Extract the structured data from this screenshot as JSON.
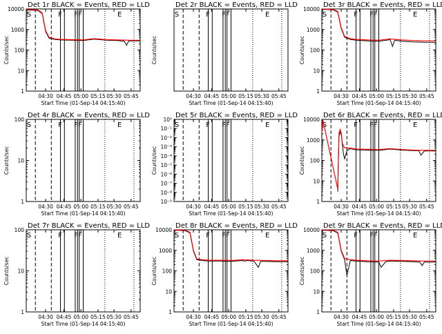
{
  "page": {
    "xlabel": "Start Time (01-Sep-14 04:15:40)",
    "ylabel": "Counts/sec"
  },
  "colors": {
    "events": "#000000",
    "lld": "#ff0000",
    "background": "#ffffff"
  },
  "chart_data": [
    {
      "type": "line",
      "title": "Det 1r BLACK = Events, RED = LLD",
      "scale": "log",
      "ylim": [
        1,
        10000
      ],
      "yticks": [
        "1",
        "10",
        "100",
        "1000",
        "10000"
      ],
      "xticks": [
        "04:30",
        "04:45",
        "05:00",
        "05:15",
        "05:30",
        "05:45"
      ],
      "xlabel": "Start Time (01-Sep-14 04:15:40)",
      "ylabel": "Counts/sec",
      "markers": [
        "S",
        "F",
        "FF",
        "E"
      ],
      "series": [
        {
          "name": "Events",
          "color": "#000000",
          "x": [
            0,
            5,
            10,
            14,
            17,
            20,
            25,
            30,
            40,
            50,
            60,
            70,
            80,
            86,
            88,
            90,
            100
          ],
          "y": [
            9000,
            8800,
            8500,
            6000,
            800,
            380,
            330,
            310,
            300,
            290,
            340,
            300,
            290,
            270,
            170,
            280,
            280
          ]
        },
        {
          "name": "LLD",
          "color": "#ff0000",
          "x": [
            0,
            5,
            10,
            14,
            17,
            20,
            25,
            30,
            40,
            50,
            60,
            70,
            80,
            90,
            100
          ],
          "y": [
            9500,
            9200,
            9000,
            6500,
            900,
            420,
            350,
            330,
            320,
            310,
            360,
            320,
            310,
            300,
            300
          ]
        }
      ]
    },
    {
      "type": "line",
      "title": "Det 2r BLACK = Events, RED = LLD",
      "scale": "log",
      "ylim": [
        1,
        10000
      ],
      "yticks": [],
      "xticks": [
        "04:30",
        "04:45",
        "05:00",
        "05:15",
        "05:30",
        "05:45"
      ],
      "xlabel": "Start Time (01-Sep-14 04:15:40)",
      "ylabel": "Counts/sec",
      "markers": [
        "S",
        "F",
        "FF",
        "E"
      ],
      "series": []
    },
    {
      "type": "line",
      "title": "Det 3r BLACK = Events, RED = LLD",
      "scale": "log",
      "ylim": [
        1,
        10000
      ],
      "yticks": [
        "1",
        "10",
        "100",
        "1000",
        "10000"
      ],
      "xticks": [
        "04:30",
        "04:45",
        "05:00",
        "05:15",
        "05:30",
        "05:45"
      ],
      "xlabel": "Start Time (01-Sep-14 04:15:40)",
      "ylabel": "Counts/sec",
      "markers": [
        "S",
        "F",
        "FF",
        "E"
      ],
      "series": [
        {
          "name": "Events",
          "color": "#000000",
          "x": [
            0,
            5,
            10,
            14,
            17,
            20,
            25,
            30,
            40,
            50,
            60,
            62,
            64,
            70,
            80,
            90,
            100
          ],
          "y": [
            9500,
            9400,
            9000,
            7000,
            1100,
            420,
            330,
            300,
            280,
            270,
            320,
            150,
            300,
            270,
            250,
            240,
            240
          ]
        },
        {
          "name": "LLD",
          "color": "#ff0000",
          "x": [
            0,
            5,
            10,
            14,
            17,
            20,
            25,
            30,
            40,
            50,
            60,
            70,
            80,
            90,
            100
          ],
          "y": [
            10000,
            9800,
            9500,
            7500,
            1200,
            460,
            360,
            330,
            310,
            300,
            350,
            310,
            290,
            280,
            280
          ]
        }
      ]
    },
    {
      "type": "line",
      "title": "Det 4r BLACK = Events, RED = LLD",
      "scale": "log",
      "ylim": [
        1,
        100
      ],
      "yticks": [
        "1",
        "10",
        "100"
      ],
      "xticks": [
        "04:30",
        "04:45",
        "05:00",
        "05:15",
        "05:30",
        "05:45"
      ],
      "xlabel": "Start Time (01-Sep-14 04:15:40)",
      "ylabel": "Counts/sec",
      "markers": [
        "S",
        "F",
        "FF",
        "E"
      ],
      "series": []
    },
    {
      "type": "line",
      "title": "Det 5r BLACK = Events, RED = LLD",
      "scale": "log",
      "ylim": [
        1e-09,
        1
      ],
      "yticks": [
        "10⁻⁹",
        "10⁻⁸",
        "10⁻⁷",
        "10⁻⁶",
        "10⁻⁵",
        "10⁻⁴",
        "10⁻³",
        "10⁻²",
        "10⁻¹",
        "10⁰"
      ],
      "xticks": [
        "04:30",
        "04:45",
        "05:00",
        "05:15",
        "05:30",
        "05:45"
      ],
      "xlabel": "Start Time (01-Sep-14 04:15:40)",
      "ylabel": "Counts/sec",
      "markers": [
        "S",
        "F",
        "FF",
        "E"
      ],
      "series": []
    },
    {
      "type": "line",
      "title": "Det 6r BLACK = Events, RED = LLD",
      "scale": "log",
      "ylim": [
        1,
        10000
      ],
      "yticks": [
        "1",
        "10",
        "100",
        "1000",
        "10000"
      ],
      "xticks": [
        "04:30",
        "04:45",
        "05:00",
        "05:15",
        "05:30",
        "05:45"
      ],
      "xlabel": "Start Time (01-Sep-14 04:15:40)",
      "ylabel": "Counts/sec",
      "markers": [
        "S",
        "F",
        "FF",
        "E"
      ],
      "series": [
        {
          "name": "Events",
          "color": "#000000",
          "x": [
            14,
            15,
            16,
            17,
            18,
            19,
            20,
            22,
            25,
            30,
            40,
            50,
            60,
            70,
            80,
            85,
            87,
            90,
            100
          ],
          "y": [
            3,
            1500,
            2500,
            1800,
            600,
            200,
            120,
            300,
            380,
            330,
            320,
            310,
            360,
            320,
            300,
            300,
            180,
            290,
            290
          ]
        },
        {
          "name": "LLD",
          "color": "#ff0000",
          "x": [
            0,
            1,
            14,
            15,
            16,
            17,
            18,
            19,
            20,
            22,
            25,
            30,
            40,
            50,
            60,
            70,
            80,
            90,
            100
          ],
          "y": [
            2500,
            9000,
            4,
            2000,
            3200,
            2200,
            700,
            500,
            420,
            400,
            400,
            360,
            350,
            340,
            380,
            340,
            320,
            310,
            310
          ]
        }
      ]
    },
    {
      "type": "line",
      "title": "Det 7r BLACK = Events, RED = LLD",
      "scale": "log",
      "ylim": [
        1,
        100
      ],
      "yticks": [
        "1",
        "10",
        "100"
      ],
      "xticks": [
        "04:30",
        "04:45",
        "05:00",
        "05:15",
        "05:30",
        "05:45"
      ],
      "xlabel": "Start Time (01-Sep-14 04:15:40)",
      "ylabel": "Counts/sec",
      "markers": [
        "S",
        "F",
        "FF",
        "E"
      ],
      "series": []
    },
    {
      "type": "line",
      "title": "Det 8r BLACK = Events, RED = LLD",
      "scale": "log",
      "ylim": [
        1,
        10000
      ],
      "yticks": [
        "1",
        "10",
        "100",
        "1000",
        "10000"
      ],
      "xticks": [
        "04:30",
        "04:45",
        "05:00",
        "05:15",
        "05:30",
        "05:45"
      ],
      "xlabel": "Start Time (01-Sep-14 04:15:40)",
      "ylabel": "Counts/sec",
      "markers": [
        "S",
        "F",
        "FF",
        "E"
      ],
      "series": [
        {
          "name": "Events",
          "color": "#000000",
          "x": [
            0,
            5,
            10,
            14,
            17,
            20,
            25,
            30,
            40,
            50,
            60,
            62,
            64,
            70,
            74,
            76,
            80,
            90,
            100
          ],
          "y": [
            9500,
            9300,
            9000,
            7000,
            900,
            350,
            320,
            300,
            300,
            290,
            320,
            300,
            320,
            300,
            150,
            290,
            290,
            280,
            280
          ]
        },
        {
          "name": "LLD",
          "color": "#ff0000",
          "x": [
            0,
            5,
            10,
            14,
            17,
            20,
            25,
            30,
            40,
            50,
            60,
            70,
            80,
            90,
            100
          ],
          "y": [
            10000,
            9800,
            9500,
            7500,
            1000,
            380,
            350,
            330,
            330,
            320,
            350,
            330,
            320,
            310,
            310
          ]
        }
      ]
    },
    {
      "type": "line",
      "title": "Det 9r BLACK = Events, RED = LLD",
      "scale": "log",
      "ylim": [
        1,
        10000
      ],
      "yticks": [
        "1",
        "10",
        "100",
        "1000",
        "10000"
      ],
      "xticks": [
        "04:30",
        "04:45",
        "05:00",
        "05:15",
        "05:30",
        "05:45"
      ],
      "xlabel": "Start Time (01-Sep-14 04:15:40)",
      "ylabel": "Counts/sec",
      "markers": [
        "S",
        "F",
        "FF",
        "E"
      ],
      "series": [
        {
          "name": "Events",
          "color": "#000000",
          "x": [
            0,
            5,
            10,
            14,
            17,
            20,
            22,
            25,
            30,
            40,
            50,
            52,
            54,
            56,
            60,
            70,
            80,
            86,
            88,
            90,
            100
          ],
          "y": [
            9500,
            9300,
            9000,
            7000,
            900,
            350,
            60,
            320,
            300,
            280,
            270,
            150,
            200,
            280,
            300,
            290,
            280,
            270,
            180,
            270,
            270
          ]
        },
        {
          "name": "LLD",
          "color": "#ff0000",
          "x": [
            0,
            5,
            10,
            14,
            17,
            20,
            25,
            30,
            40,
            50,
            60,
            70,
            80,
            90,
            100
          ],
          "y": [
            10000,
            9800,
            9500,
            7500,
            1000,
            400,
            350,
            330,
            310,
            300,
            330,
            320,
            310,
            300,
            300
          ]
        }
      ]
    }
  ]
}
